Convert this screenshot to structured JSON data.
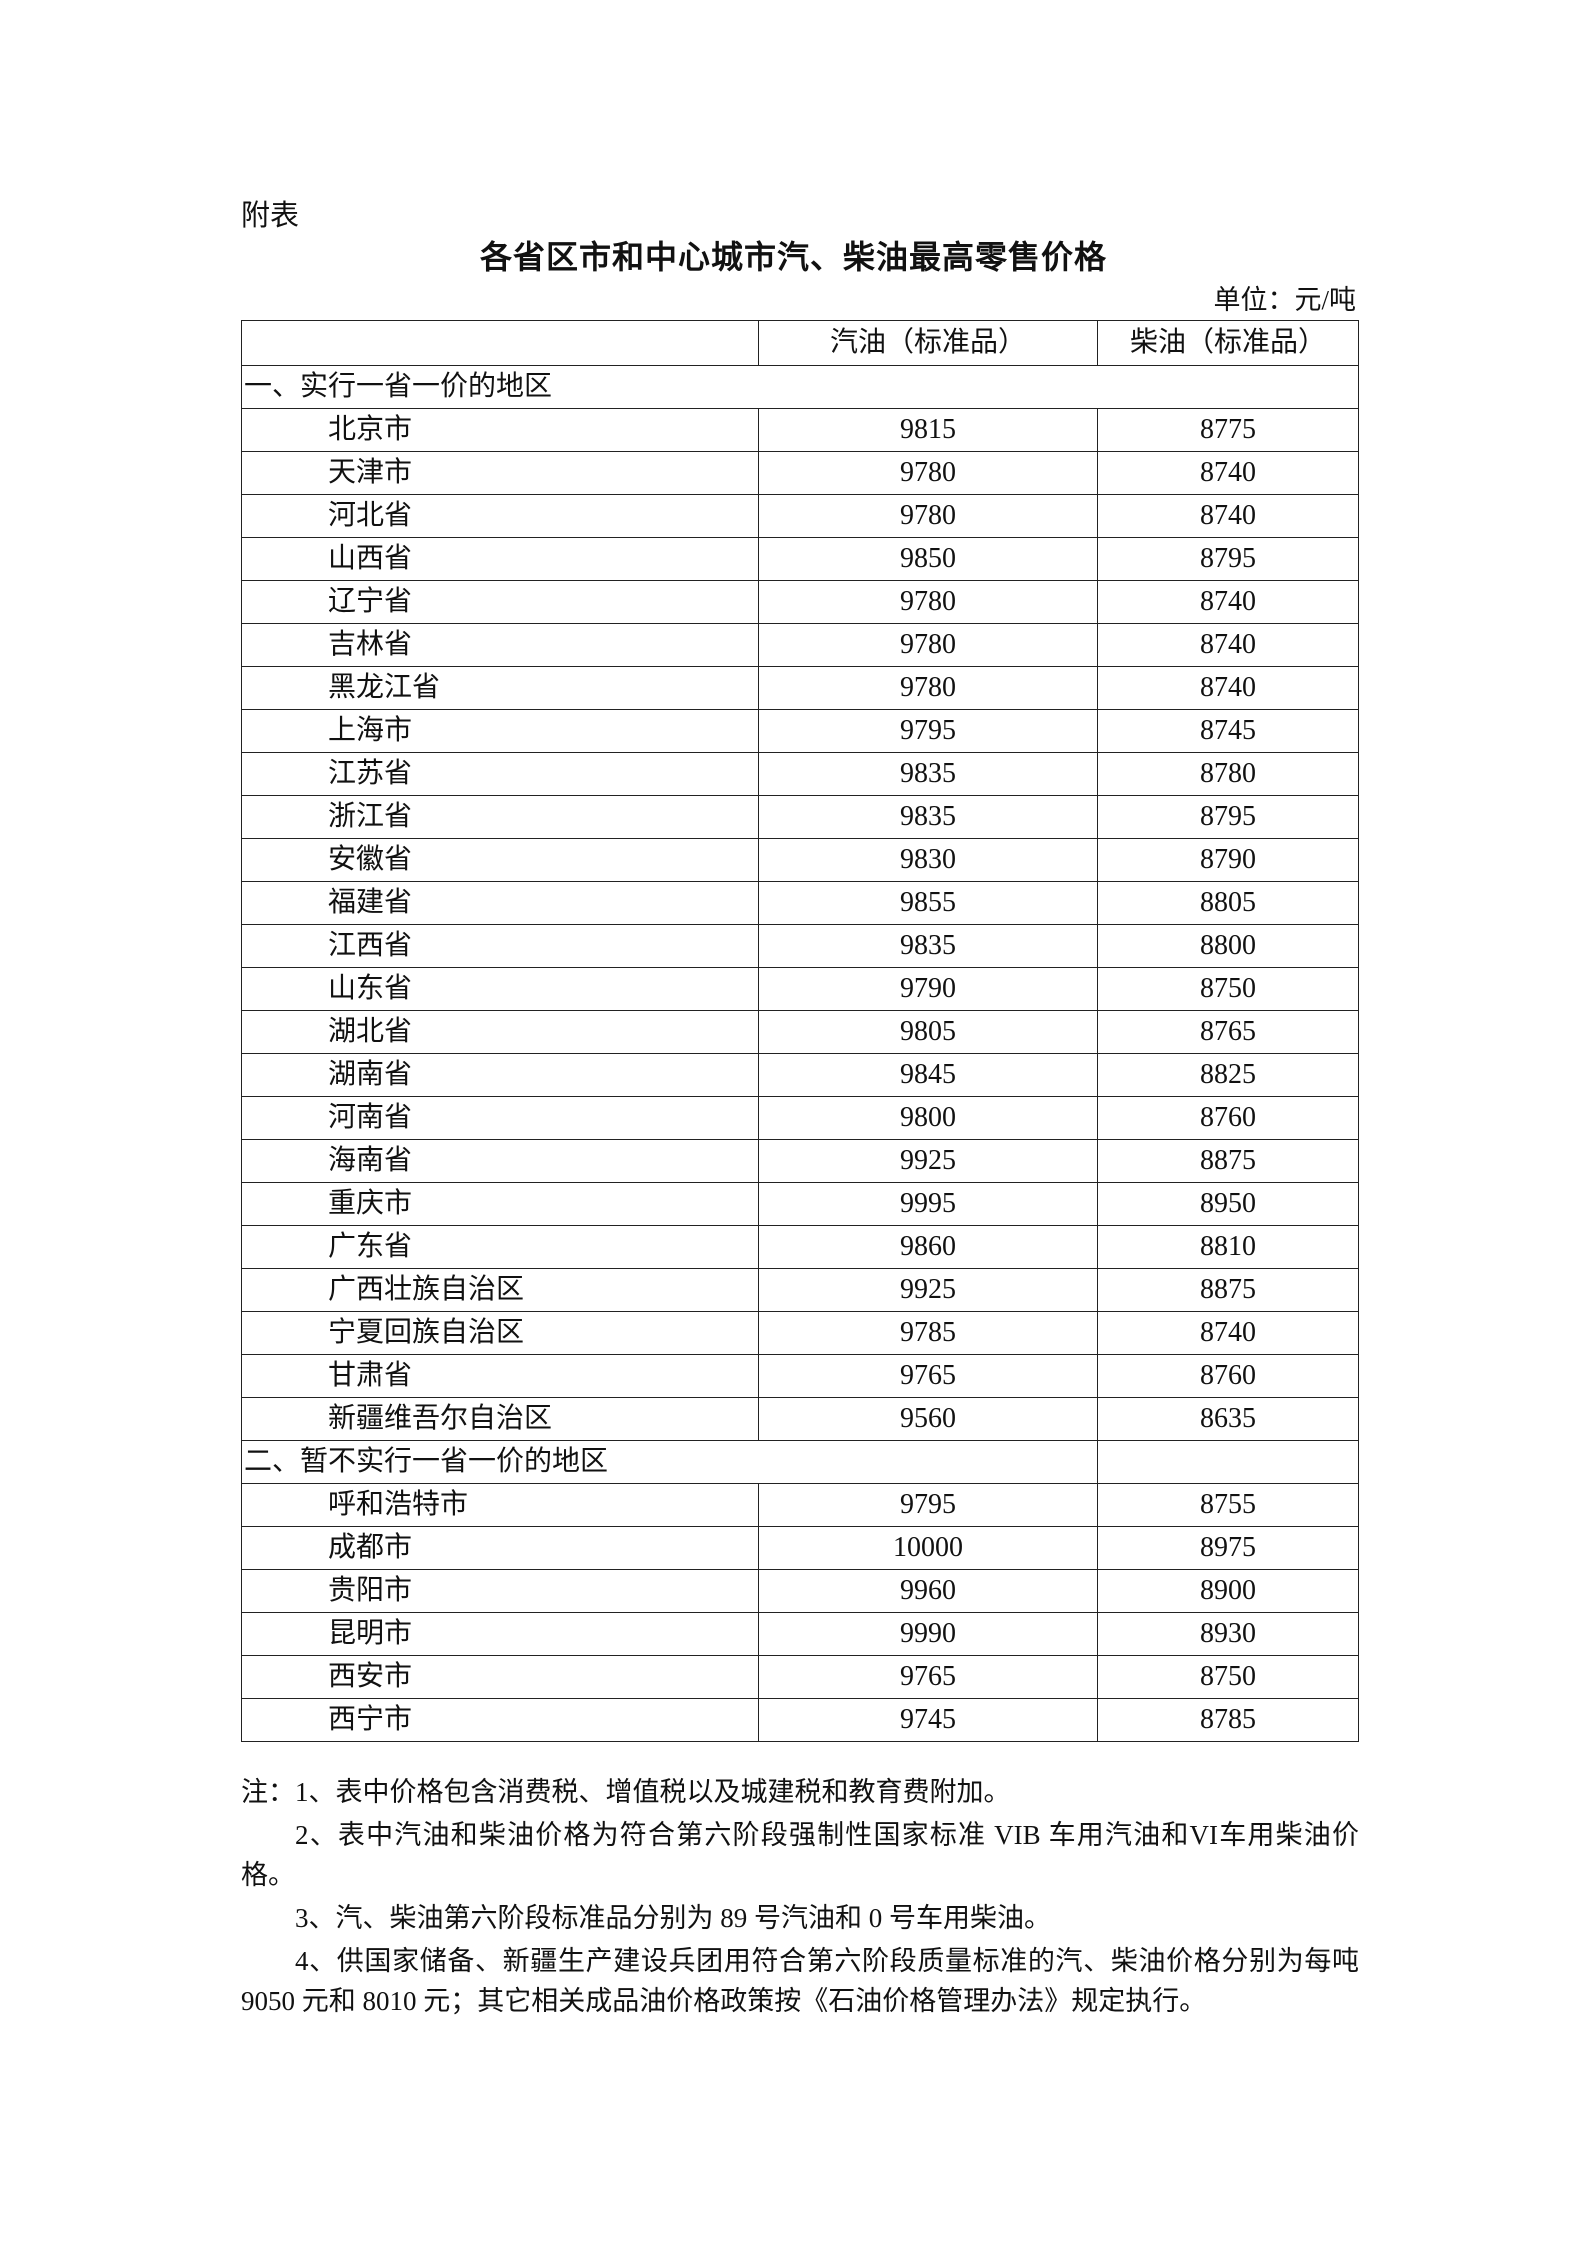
{
  "appendix_label": "附表",
  "title": "各省区市和中心城市汽、柴油最高零售价格",
  "unit": "单位：元/吨",
  "table": {
    "headers": [
      "",
      "汽油（标准品）",
      "柴油（标准品）"
    ],
    "sections": [
      {
        "label": "一、实行一省一价的地区",
        "rows": [
          [
            "北京市",
            "9815",
            "8775"
          ],
          [
            "天津市",
            "9780",
            "8740"
          ],
          [
            "河北省",
            "9780",
            "8740"
          ],
          [
            "山西省",
            "9850",
            "8795"
          ],
          [
            "辽宁省",
            "9780",
            "8740"
          ],
          [
            "吉林省",
            "9780",
            "8740"
          ],
          [
            "黑龙江省",
            "9780",
            "8740"
          ],
          [
            "上海市",
            "9795",
            "8745"
          ],
          [
            "江苏省",
            "9835",
            "8780"
          ],
          [
            "浙江省",
            "9835",
            "8795"
          ],
          [
            "安徽省",
            "9830",
            "8790"
          ],
          [
            "福建省",
            "9855",
            "8805"
          ],
          [
            "江西省",
            "9835",
            "8800"
          ],
          [
            "山东省",
            "9790",
            "8750"
          ],
          [
            "湖北省",
            "9805",
            "8765"
          ],
          [
            "湖南省",
            "9845",
            "8825"
          ],
          [
            "河南省",
            "9800",
            "8760"
          ],
          [
            "海南省",
            "9925",
            "8875"
          ],
          [
            "重庆市",
            "9995",
            "8950"
          ],
          [
            "广东省",
            "9860",
            "8810"
          ],
          [
            "广西壮族自治区",
            "9925",
            "8875"
          ],
          [
            "宁夏回族自治区",
            "9785",
            "8740"
          ],
          [
            "甘肃省",
            "9765",
            "8760"
          ],
          [
            "新疆维吾尔自治区",
            "9560",
            "8635"
          ]
        ]
      },
      {
        "label": "二、暂不实行一省一价的地区",
        "rows": [
          [
            "呼和浩特市",
            "9795",
            "8755"
          ],
          [
            "成都市",
            "10000",
            "8975"
          ],
          [
            "贵阳市",
            "9960",
            "8900"
          ],
          [
            "昆明市",
            "9990",
            "8930"
          ],
          [
            "西安市",
            "9765",
            "8750"
          ],
          [
            "西宁市",
            "9745",
            "8785"
          ]
        ]
      }
    ]
  },
  "notes": [
    "注：1、表中价格包含消费税、增值税以及城建税和教育费附加。",
    "2、表中汽油和柴油价格为符合第六阶段强制性国家标准 VIB 车用汽油和VI车用柴油价格。",
    "3、汽、柴油第六阶段标准品分别为 89 号汽油和 0 号车用柴油。",
    "4、供国家储备、新疆生产建设兵团用符合第六阶段质量标准的汽、柴油价格分别为每吨 9050 元和 8010 元；其它相关成品油价格政策按《石油价格管理办法》规定执行。"
  ]
}
